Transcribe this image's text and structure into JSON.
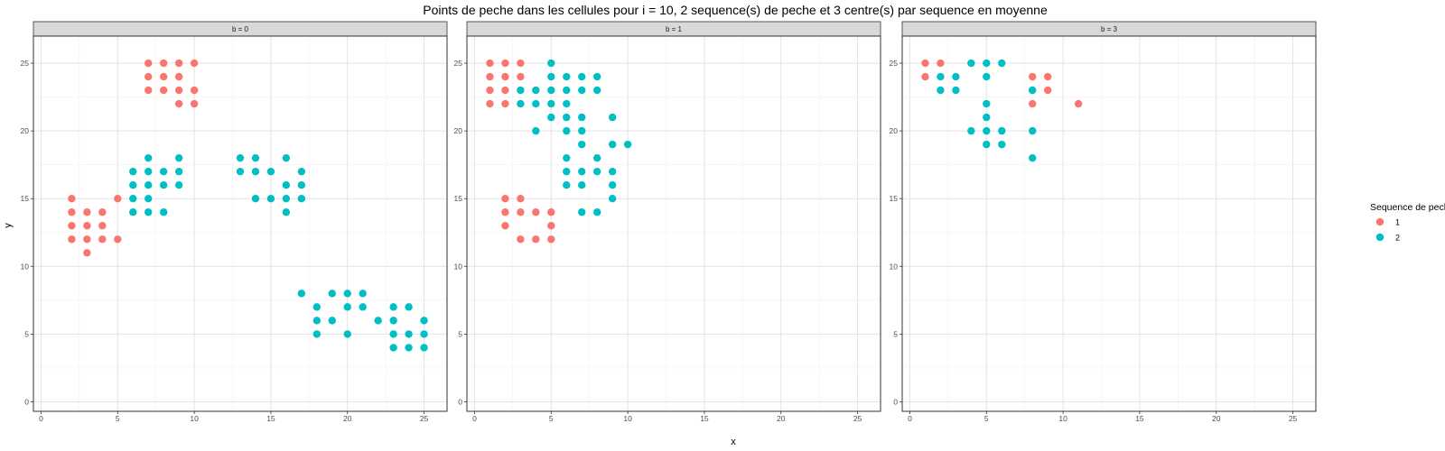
{
  "chart_data": {
    "type": "scatter",
    "title": "Points de peche dans les cellules pour i = 10, 2 sequence(s) de peche et 3 centre(s) par sequence en moyenne",
    "xlabel": "x",
    "ylabel": "y",
    "xlim": [
      -0.5,
      26.5
    ],
    "ylim": [
      -0.7,
      27
    ],
    "x_ticks": [
      "0",
      "5",
      "10",
      "15",
      "20",
      "25"
    ],
    "y_ticks": [
      "0",
      "5",
      "10",
      "15",
      "20",
      "25"
    ],
    "grid": true,
    "legend": {
      "title": "Sequence de peche",
      "placement": "right",
      "entries": [
        {
          "label": "1",
          "color": "#F8766D"
        },
        {
          "label": "2",
          "color": "#00BFC4"
        }
      ]
    },
    "panels": [
      {
        "strip": "b = 0",
        "series": [
          {
            "seq": "1",
            "color": "#F8766D",
            "points": [
              [
                7,
                25
              ],
              [
                8,
                25
              ],
              [
                9,
                25
              ],
              [
                10,
                25
              ],
              [
                7,
                24
              ],
              [
                8,
                24
              ],
              [
                9,
                24
              ],
              [
                7,
                23
              ],
              [
                8,
                23
              ],
              [
                9,
                23
              ],
              [
                10,
                23
              ],
              [
                9,
                22
              ],
              [
                10,
                22
              ],
              [
                2,
                15
              ],
              [
                5,
                15
              ],
              [
                2,
                14
              ],
              [
                3,
                14
              ],
              [
                4,
                14
              ],
              [
                2,
                13
              ],
              [
                3,
                13
              ],
              [
                4,
                13
              ],
              [
                2,
                12
              ],
              [
                3,
                12
              ],
              [
                4,
                12
              ],
              [
                5,
                12
              ],
              [
                3,
                11
              ]
            ]
          },
          {
            "seq": "2",
            "color": "#00BFC4",
            "points": [
              [
                7,
                18
              ],
              [
                9,
                18
              ],
              [
                6,
                17
              ],
              [
                7,
                17
              ],
              [
                8,
                17
              ],
              [
                9,
                17
              ],
              [
                6,
                16
              ],
              [
                7,
                16
              ],
              [
                8,
                16
              ],
              [
                9,
                16
              ],
              [
                6,
                15
              ],
              [
                7,
                15
              ],
              [
                6,
                14
              ],
              [
                7,
                14
              ],
              [
                8,
                14
              ],
              [
                13,
                18
              ],
              [
                14,
                18
              ],
              [
                16,
                18
              ],
              [
                13,
                17
              ],
              [
                14,
                17
              ],
              [
                15,
                17
              ],
              [
                17,
                17
              ],
              [
                16,
                16
              ],
              [
                17,
                16
              ],
              [
                14,
                15
              ],
              [
                15,
                15
              ],
              [
                16,
                15
              ],
              [
                17,
                15
              ],
              [
                16,
                14
              ],
              [
                17,
                8
              ],
              [
                19,
                8
              ],
              [
                20,
                8
              ],
              [
                21,
                8
              ],
              [
                18,
                7
              ],
              [
                20,
                7
              ],
              [
                21,
                7
              ],
              [
                23,
                7
              ],
              [
                24,
                7
              ],
              [
                18,
                6
              ],
              [
                19,
                6
              ],
              [
                22,
                6
              ],
              [
                23,
                6
              ],
              [
                25,
                6
              ],
              [
                18,
                5
              ],
              [
                20,
                5
              ],
              [
                23,
                5
              ],
              [
                24,
                5
              ],
              [
                25,
                5
              ],
              [
                23,
                4
              ],
              [
                24,
                4
              ],
              [
                25,
                4
              ]
            ]
          }
        ]
      },
      {
        "strip": "b = 1",
        "series": [
          {
            "seq": "1",
            "color": "#F8766D",
            "points": [
              [
                1,
                25
              ],
              [
                2,
                25
              ],
              [
                3,
                25
              ],
              [
                1,
                24
              ],
              [
                2,
                24
              ],
              [
                3,
                24
              ],
              [
                1,
                23
              ],
              [
                2,
                23
              ],
              [
                1,
                22
              ],
              [
                2,
                22
              ],
              [
                2,
                15
              ],
              [
                3,
                15
              ],
              [
                2,
                14
              ],
              [
                3,
                14
              ],
              [
                4,
                14
              ],
              [
                5,
                14
              ],
              [
                2,
                13
              ],
              [
                5,
                13
              ],
              [
                3,
                12
              ],
              [
                4,
                12
              ],
              [
                5,
                12
              ]
            ]
          },
          {
            "seq": "2",
            "color": "#00BFC4",
            "points": [
              [
                5,
                25
              ],
              [
                5,
                24
              ],
              [
                6,
                24
              ],
              [
                7,
                24
              ],
              [
                8,
                24
              ],
              [
                3,
                23
              ],
              [
                4,
                23
              ],
              [
                5,
                23
              ],
              [
                6,
                23
              ],
              [
                7,
                23
              ],
              [
                8,
                23
              ],
              [
                3,
                22
              ],
              [
                4,
                22
              ],
              [
                5,
                22
              ],
              [
                6,
                22
              ],
              [
                5,
                21
              ],
              [
                6,
                21
              ],
              [
                7,
                21
              ],
              [
                9,
                21
              ],
              [
                4,
                20
              ],
              [
                6,
                20
              ],
              [
                7,
                20
              ],
              [
                7,
                19
              ],
              [
                9,
                19
              ],
              [
                10,
                19
              ],
              [
                6,
                18
              ],
              [
                8,
                18
              ],
              [
                6,
                17
              ],
              [
                7,
                17
              ],
              [
                8,
                17
              ],
              [
                9,
                17
              ],
              [
                6,
                16
              ],
              [
                7,
                16
              ],
              [
                9,
                16
              ],
              [
                9,
                15
              ],
              [
                7,
                14
              ],
              [
                8,
                14
              ]
            ]
          }
        ]
      },
      {
        "strip": "b = 3",
        "series": [
          {
            "seq": "1",
            "color": "#F8766D",
            "points": [
              [
                1,
                25
              ],
              [
                2,
                25
              ],
              [
                1,
                24
              ],
              [
                8,
                24
              ],
              [
                9,
                24
              ],
              [
                8,
                23
              ],
              [
                9,
                23
              ],
              [
                8,
                22
              ],
              [
                11,
                22
              ]
            ]
          },
          {
            "seq": "2",
            "color": "#00BFC4",
            "points": [
              [
                4,
                25
              ],
              [
                5,
                25
              ],
              [
                6,
                25
              ],
              [
                2,
                24
              ],
              [
                3,
                24
              ],
              [
                5,
                24
              ],
              [
                2,
                23
              ],
              [
                3,
                23
              ],
              [
                8,
                23
              ],
              [
                5,
                22
              ],
              [
                5,
                21
              ],
              [
                4,
                20
              ],
              [
                5,
                20
              ],
              [
                6,
                20
              ],
              [
                8,
                20
              ],
              [
                5,
                19
              ],
              [
                6,
                19
              ],
              [
                8,
                18
              ]
            ]
          }
        ]
      }
    ]
  }
}
